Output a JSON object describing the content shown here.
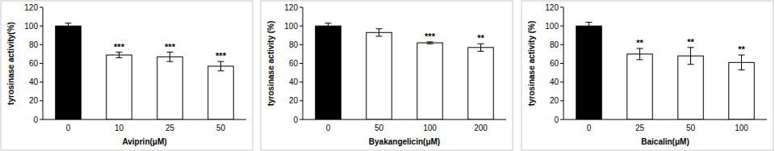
{
  "chart_data": [
    {
      "type": "bar",
      "x_label": "Aviprin(μM)",
      "y_label": "tyrosinase activity(%)",
      "categories": [
        "0",
        "10",
        "25",
        "50"
      ],
      "values": [
        100,
        69,
        67,
        57
      ],
      "errors": [
        3,
        3,
        5,
        5
      ],
      "annotations": [
        null,
        "***",
        "***",
        "***"
      ],
      "colors": [
        "#000000",
        "#ffffff",
        "#ffffff",
        "#ffffff"
      ],
      "ylim": [
        0,
        120
      ],
      "yticks": [
        0,
        20,
        40,
        60,
        80,
        100,
        120
      ],
      "grid": false
    },
    {
      "type": "bar",
      "x_label": "Byakangelicin(μM)",
      "y_label": "tyrosinase activity (%)",
      "categories": [
        "0",
        "50",
        "100",
        "200"
      ],
      "values": [
        100,
        93,
        82,
        77
      ],
      "errors": [
        3,
        4,
        1,
        4
      ],
      "annotations": [
        null,
        null,
        "***",
        "**"
      ],
      "colors": [
        "#000000",
        "#ffffff",
        "#ffffff",
        "#ffffff"
      ],
      "ylim": [
        0,
        120
      ],
      "yticks": [
        0,
        20,
        40,
        60,
        80,
        100,
        120
      ],
      "grid": false
    },
    {
      "type": "bar",
      "x_label": "Baicalin(μM)",
      "y_label": "tyrosinase activity (%)",
      "categories": [
        "0",
        "25",
        "50",
        "100"
      ],
      "values": [
        100,
        70,
        68,
        61
      ],
      "errors": [
        4,
        6,
        9,
        8
      ],
      "annotations": [
        null,
        "**",
        "**",
        "**"
      ],
      "colors": [
        "#000000",
        "#ffffff",
        "#ffffff",
        "#ffffff"
      ],
      "ylim": [
        0,
        120
      ],
      "yticks": [
        0,
        20,
        40,
        60,
        80,
        100,
        120
      ],
      "grid": false
    }
  ]
}
